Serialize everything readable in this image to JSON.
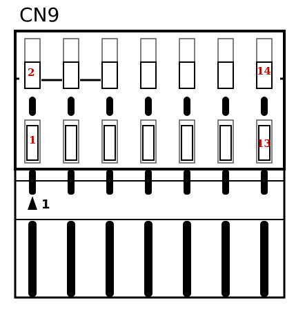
{
  "title": "CN9",
  "pin_labels": {
    "top_left": "2",
    "top_right": "14",
    "bottom_left": "1",
    "bottom_right": "13"
  },
  "pin1_marker": "1",
  "columns": 7,
  "colors": {
    "outline": "#000000",
    "pin_label": "#c00000",
    "slot_stroke": "#555555",
    "background": "#ffffff"
  }
}
